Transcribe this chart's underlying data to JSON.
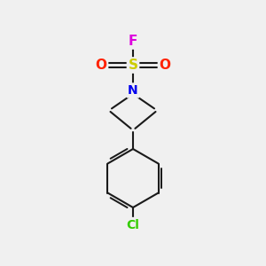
{
  "bg_color": "#f0f0f0",
  "bond_color": "#1a1a1a",
  "bond_width": 1.5,
  "atom_colors": {
    "S": "#cccc00",
    "O": "#ff2200",
    "F": "#dd00dd",
    "N": "#0000ee",
    "Cl": "#33cc00"
  },
  "atom_fontsizes": {
    "S": 11,
    "O": 11,
    "F": 11,
    "N": 10,
    "Cl": 10
  },
  "sx": 5.0,
  "sy": 7.55,
  "fx": 5.0,
  "fy": 8.45,
  "olx": 3.8,
  "oly": 7.55,
  "orx": 6.2,
  "ory": 7.55,
  "nx": 5.0,
  "ny": 6.6,
  "al": [
    4.15,
    5.85
  ],
  "ab": [
    5.0,
    5.1
  ],
  "ar": [
    5.85,
    5.85
  ],
  "bcx": 5.0,
  "bcy": 3.3,
  "br": 1.1,
  "clx": 5.0,
  "cly": 1.55
}
